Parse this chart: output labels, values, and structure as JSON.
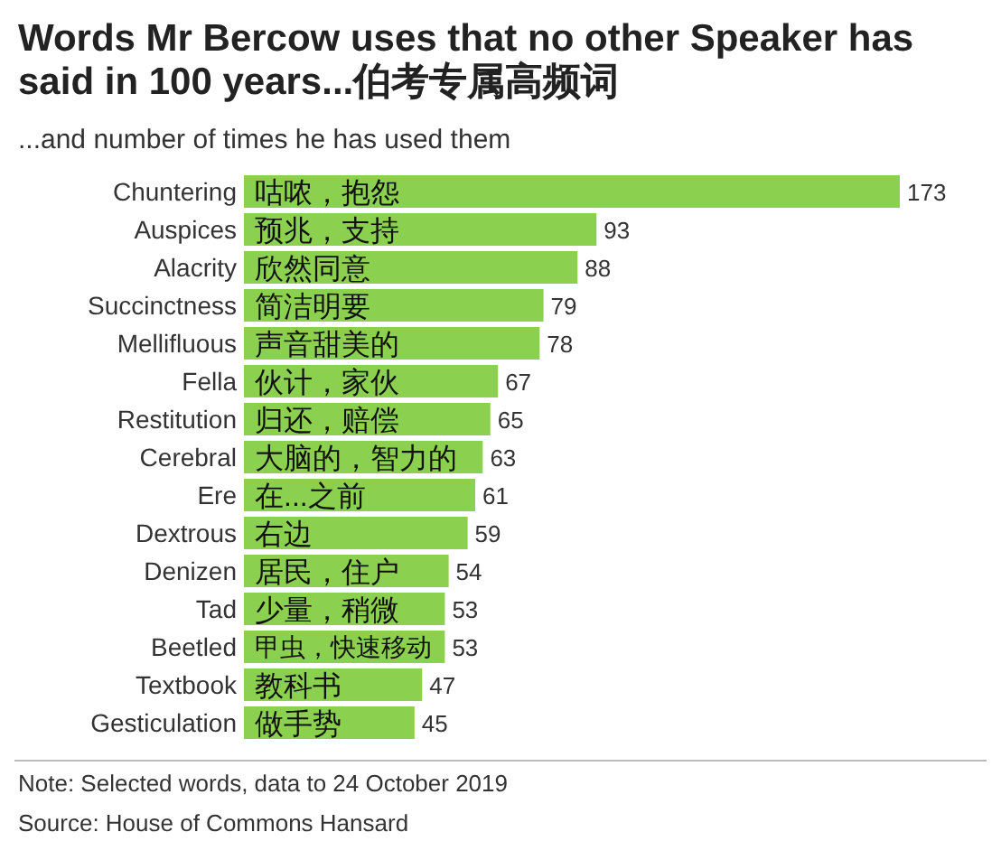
{
  "chart_data": {
    "type": "bar",
    "orientation": "horizontal",
    "title": "Words Mr Bercow uses that no other Speaker has said in 100 years...伯考专属高频词",
    "subtitle": "...and number of times he has used them",
    "categories": [
      "Chuntering",
      "Auspices",
      "Alacrity",
      "Succinctness",
      "Mellifluous",
      "Fella",
      "Restitution",
      "Cerebral",
      "Ere",
      "Dextrous",
      "Denizen",
      "Tad",
      "Beetled",
      "Textbook",
      "Gesticulation"
    ],
    "values": [
      173,
      93,
      88,
      79,
      78,
      67,
      65,
      63,
      61,
      59,
      54,
      53,
      53,
      47,
      45
    ],
    "color": "#8cd04f",
    "data_labels": true,
    "annotations": [
      {
        "text": "咕哝，抱怨",
        "y": "Chuntering"
      },
      {
        "text": "预兆，支持",
        "y": "Auspices"
      },
      {
        "text": "欣然同意",
        "y": "Alacrity"
      },
      {
        "text": "简洁明要",
        "y": "Succinctness"
      },
      {
        "text": "声音甜美的",
        "y": "Mellifluous"
      },
      {
        "text": "伙计，家伙",
        "y": "Fella"
      },
      {
        "text": "归还，赔偿",
        "y": "Restitution"
      },
      {
        "text": "大脑的，智力的",
        "y": "Cerebral"
      },
      {
        "text": "在...之前",
        "y": "Ere"
      },
      {
        "text": "右边",
        "y": "Dextrous"
      },
      {
        "text": "居民，住户",
        "y": "Denizen"
      },
      {
        "text": "少量，稍微",
        "y": "Tad"
      },
      {
        "text": "甲虫，快速移动",
        "y": "Beetled"
      },
      {
        "text": "教科书",
        "y": "Textbook"
      },
      {
        "text": "做手势",
        "y": "Gesticulation"
      },
      "Note: Selected words, data to 24 October 2019",
      "Source: House of Commons Hansard"
    ]
  }
}
